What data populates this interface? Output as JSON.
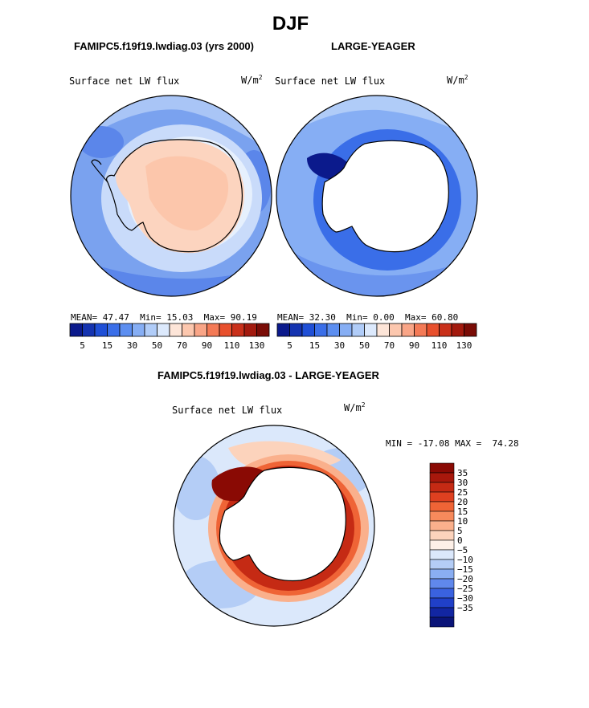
{
  "page": {
    "title": "DJF",
    "left_case": "FAMIPC5.f19f19.lwdiag.03 (yrs 2000)",
    "right_case": "LARGE-YEAGER",
    "diff_case": "FAMIPC5.f19f19.lwdiag.03 - LARGE-YEAGER"
  },
  "chart_data": [
    {
      "type": "heatmap",
      "projection": "south-polar stereographic",
      "title": "Surface net LW flux",
      "units": "W/m",
      "units_sup": "2",
      "stats": {
        "mean_label": "MEAN=",
        "mean": "47.47",
        "min_label": "Min=",
        "min": "15.03",
        "max_label": "Max=",
        "max": "90.19"
      },
      "colorbar": {
        "orientation": "horizontal",
        "labels": [
          "5",
          "15",
          "30",
          "50",
          "70",
          "90",
          "110",
          "130"
        ],
        "colors": [
          "#0b1a8c",
          "#1433b0",
          "#1f4fd6",
          "#3a6ee8",
          "#5c8ef0",
          "#86aef4",
          "#b0ccf8",
          "#dce9fc",
          "#fde5d8",
          "#fcc7ae",
          "#f9a587",
          "#f47a56",
          "#e8502d",
          "#c9301a",
          "#a31a0e",
          "#7a0c06"
        ]
      },
      "regions": [
        {
          "name": "Antarctic interior",
          "approx_value": "70"
        },
        {
          "name": "Southern Ocean",
          "approx_value": "30"
        }
      ]
    },
    {
      "type": "heatmap",
      "projection": "south-polar stereographic",
      "title": "Surface net LW flux",
      "units": "W/m",
      "units_sup": "2",
      "stats": {
        "mean_label": "MEAN=",
        "mean": "32.30",
        "min_label": "Min=",
        "min": "0.00",
        "max_label": "Max=",
        "max": "60.80"
      },
      "colorbar": {
        "orientation": "horizontal",
        "labels": [
          "5",
          "15",
          "30",
          "50",
          "70",
          "90",
          "110",
          "130"
        ],
        "colors": [
          "#0b1a8c",
          "#1433b0",
          "#1f4fd6",
          "#3a6ee8",
          "#5c8ef0",
          "#86aef4",
          "#b0ccf8",
          "#dce9fc",
          "#fde5d8",
          "#fcc7ae",
          "#f9a587",
          "#f47a56",
          "#e8502d",
          "#c9301a",
          "#a31a0e",
          "#7a0c06"
        ]
      },
      "regions": [
        {
          "name": "Antarctic interior",
          "approx_value": "missing"
        },
        {
          "name": "Weddell Sea",
          "approx_value": "5"
        },
        {
          "name": "Southern Ocean",
          "approx_value": "30"
        }
      ]
    },
    {
      "type": "heatmap",
      "projection": "south-polar stereographic",
      "title": "Surface net LW flux",
      "units": "W/m",
      "units_sup": "2",
      "stats": {
        "min_label": "MIN =",
        "min": "-17.08",
        "max_label": "MAX =",
        "max": "74.28"
      },
      "colorbar": {
        "orientation": "vertical",
        "labels": [
          "35",
          "30",
          "25",
          "20",
          "15",
          "10",
          "5",
          "0",
          "−5",
          "−10",
          "−15",
          "−20",
          "−25",
          "−30",
          "−35"
        ],
        "colors": [
          "#8a0a04",
          "#a8180c",
          "#c52a14",
          "#de4020",
          "#ef6436",
          "#f78a5c",
          "#fab08c",
          "#fcd3bc",
          "#fdf0e8",
          "#dbe8fb",
          "#b4cdf6",
          "#8aaef2",
          "#6088ec",
          "#3a62e0",
          "#2040c8",
          "#1226a2",
          "#0a1478"
        ]
      },
      "regions": [
        {
          "name": "Antarctic coast",
          "approx_value": "35"
        },
        {
          "name": "Southern Ocean",
          "approx_value": "-5"
        }
      ]
    }
  ]
}
